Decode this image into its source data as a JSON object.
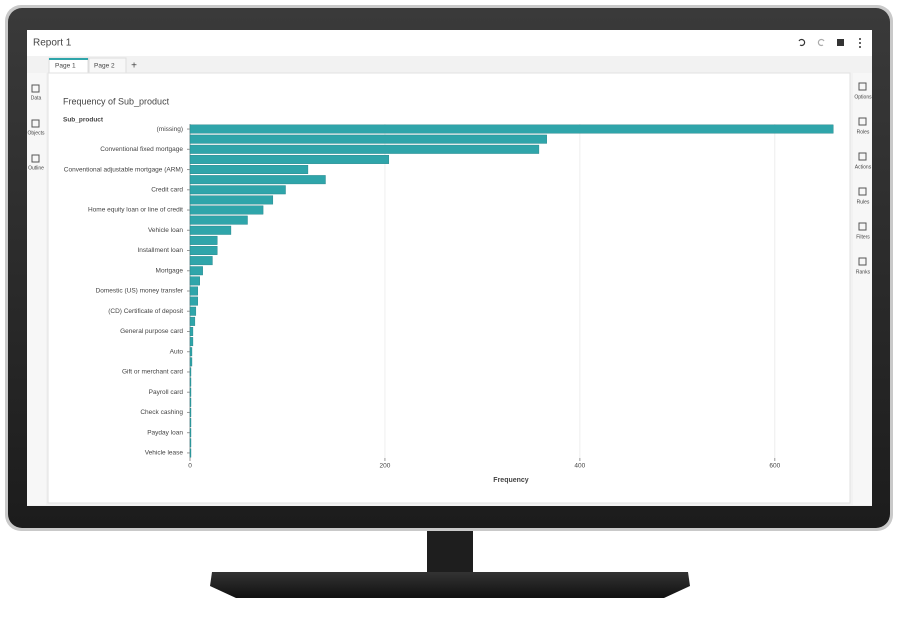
{
  "app": {
    "title": "Report 1",
    "tabs": [
      "Page 1",
      "Page 2"
    ],
    "add_tab": "+",
    "left_panels": [
      "Data",
      "Objects",
      "Outline"
    ],
    "right_panels": [
      "Options",
      "Roles",
      "Actions",
      "Rules",
      "Filters",
      "Ranks"
    ]
  },
  "chart_data": {
    "type": "hbar",
    "title": "Frequency of Sub_product",
    "ylabel": "Sub_product",
    "xlabel": "Frequency",
    "categories": [
      "(missing)",
      null,
      "Conventional fixed mortgage",
      null,
      "Conventional adjustable mortgage (ARM)",
      null,
      "Credit card",
      null,
      "Home equity loan or line of credit",
      null,
      "Vehicle loan",
      null,
      "Installment loan",
      null,
      "Mortgage",
      null,
      "Domestic (US) money transfer",
      null,
      "(CD) Certificate of deposit",
      null,
      "General purpose card",
      null,
      "Auto",
      null,
      "Gift or merchant card",
      null,
      "Payroll card",
      null,
      "Check cashing",
      null,
      "Payday loan",
      null,
      "Vehicle lease"
    ],
    "values": [
      660,
      366,
      358,
      204,
      121,
      139,
      98,
      85,
      75,
      59,
      42,
      28,
      28,
      23,
      13,
      10,
      8,
      8,
      6,
      5,
      3,
      3,
      2,
      2,
      1,
      1,
      1,
      1,
      1,
      1,
      1,
      1,
      1
    ],
    "color": "#2fa5aa",
    "xlim": [
      0,
      670
    ],
    "xticks": [
      0,
      200,
      400,
      600
    ],
    "grid": true
  }
}
